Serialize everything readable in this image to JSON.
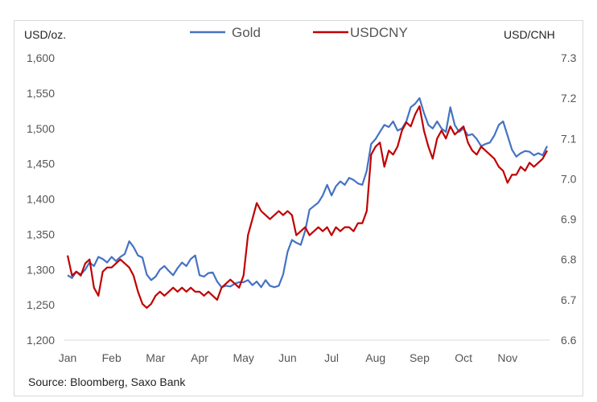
{
  "chart_data": {
    "type": "line",
    "y_left_unit": "USD/oz.",
    "y_right_unit": "USD/CNH",
    "source": "Source: Bloomberg, Saxo Bank",
    "y_left_range": [
      1200,
      1600
    ],
    "y_right_range": [
      6.6,
      7.3
    ],
    "y_left_ticks": [
      "1,200",
      "1,250",
      "1,300",
      "1,350",
      "1,400",
      "1,450",
      "1,500",
      "1,550",
      "1,600"
    ],
    "y_right_ticks": [
      "6.6",
      "6.7",
      "6.8",
      "6.9",
      "7.0",
      "7.1",
      "7.2",
      "7.3"
    ],
    "x_range": [
      0,
      10.9
    ],
    "x_ticks": [
      {
        "pos": 0,
        "label": "Jan"
      },
      {
        "pos": 1,
        "label": "Feb"
      },
      {
        "pos": 2,
        "label": "Mar"
      },
      {
        "pos": 3,
        "label": "Apr"
      },
      {
        "pos": 4,
        "label": "May"
      },
      {
        "pos": 5,
        "label": "Jun"
      },
      {
        "pos": 6,
        "label": "Jul"
      },
      {
        "pos": 7,
        "label": "Aug"
      },
      {
        "pos": 8,
        "label": "Sep"
      },
      {
        "pos": 9,
        "label": "Oct"
      },
      {
        "pos": 10,
        "label": "Nov"
      }
    ],
    "grid": false,
    "legend_position": "top-center",
    "series": [
      {
        "name": "Gold",
        "axis": "left",
        "color": "#4472c4",
        "points": [
          [
            0.0,
            1292
          ],
          [
            0.1,
            1288
          ],
          [
            0.2,
            1297
          ],
          [
            0.3,
            1293
          ],
          [
            0.4,
            1300
          ],
          [
            0.5,
            1310
          ],
          [
            0.6,
            1305
          ],
          [
            0.7,
            1318
          ],
          [
            0.8,
            1315
          ],
          [
            0.9,
            1310
          ],
          [
            1.0,
            1318
          ],
          [
            1.1,
            1312
          ],
          [
            1.2,
            1318
          ],
          [
            1.3,
            1322
          ],
          [
            1.4,
            1340
          ],
          [
            1.5,
            1332
          ],
          [
            1.6,
            1320
          ],
          [
            1.7,
            1317
          ],
          [
            1.8,
            1293
          ],
          [
            1.9,
            1285
          ],
          [
            2.0,
            1290
          ],
          [
            2.1,
            1300
          ],
          [
            2.2,
            1305
          ],
          [
            2.3,
            1298
          ],
          [
            2.4,
            1292
          ],
          [
            2.5,
            1302
          ],
          [
            2.6,
            1310
          ],
          [
            2.7,
            1305
          ],
          [
            2.8,
            1315
          ],
          [
            2.9,
            1320
          ],
          [
            3.0,
            1292
          ],
          [
            3.1,
            1290
          ],
          [
            3.2,
            1295
          ],
          [
            3.3,
            1296
          ],
          [
            3.4,
            1283
          ],
          [
            3.5,
            1275
          ],
          [
            3.6,
            1277
          ],
          [
            3.7,
            1276
          ],
          [
            3.8,
            1280
          ],
          [
            3.9,
            1282
          ],
          [
            4.0,
            1282
          ],
          [
            4.1,
            1285
          ],
          [
            4.2,
            1278
          ],
          [
            4.3,
            1283
          ],
          [
            4.4,
            1275
          ],
          [
            4.5,
            1285
          ],
          [
            4.6,
            1277
          ],
          [
            4.7,
            1275
          ],
          [
            4.8,
            1277
          ],
          [
            4.9,
            1293
          ],
          [
            5.0,
            1325
          ],
          [
            5.1,
            1342
          ],
          [
            5.2,
            1338
          ],
          [
            5.3,
            1335
          ],
          [
            5.4,
            1355
          ],
          [
            5.5,
            1385
          ],
          [
            5.6,
            1390
          ],
          [
            5.7,
            1395
          ],
          [
            5.8,
            1405
          ],
          [
            5.9,
            1420
          ],
          [
            6.0,
            1405
          ],
          [
            6.1,
            1418
          ],
          [
            6.2,
            1425
          ],
          [
            6.3,
            1420
          ],
          [
            6.4,
            1430
          ],
          [
            6.5,
            1427
          ],
          [
            6.6,
            1422
          ],
          [
            6.7,
            1420
          ],
          [
            6.8,
            1440
          ],
          [
            6.9,
            1478
          ],
          [
            7.0,
            1485
          ],
          [
            7.1,
            1495
          ],
          [
            7.2,
            1505
          ],
          [
            7.3,
            1502
          ],
          [
            7.4,
            1510
          ],
          [
            7.5,
            1497
          ],
          [
            7.6,
            1500
          ],
          [
            7.7,
            1510
          ],
          [
            7.8,
            1530
          ],
          [
            7.9,
            1535
          ],
          [
            8.0,
            1543
          ],
          [
            8.1,
            1522
          ],
          [
            8.2,
            1505
          ],
          [
            8.3,
            1500
          ],
          [
            8.4,
            1510
          ],
          [
            8.5,
            1500
          ],
          [
            8.6,
            1495
          ],
          [
            8.7,
            1530
          ],
          [
            8.8,
            1505
          ],
          [
            8.9,
            1495
          ],
          [
            9.0,
            1500
          ],
          [
            9.1,
            1490
          ],
          [
            9.2,
            1492
          ],
          [
            9.3,
            1485
          ],
          [
            9.4,
            1475
          ],
          [
            9.5,
            1478
          ],
          [
            9.6,
            1480
          ],
          [
            9.7,
            1490
          ],
          [
            9.8,
            1505
          ],
          [
            9.9,
            1510
          ],
          [
            10.0,
            1490
          ],
          [
            10.1,
            1470
          ],
          [
            10.2,
            1460
          ],
          [
            10.3,
            1465
          ],
          [
            10.4,
            1468
          ],
          [
            10.5,
            1467
          ],
          [
            10.6,
            1462
          ],
          [
            10.7,
            1465
          ],
          [
            10.8,
            1462
          ],
          [
            10.9,
            1475
          ]
        ]
      },
      {
        "name": "USDCNY",
        "axis": "right",
        "color": "#c00000",
        "points": [
          [
            0.0,
            6.81
          ],
          [
            0.1,
            6.76
          ],
          [
            0.2,
            6.77
          ],
          [
            0.3,
            6.76
          ],
          [
            0.4,
            6.79
          ],
          [
            0.5,
            6.8
          ],
          [
            0.6,
            6.73
          ],
          [
            0.7,
            6.71
          ],
          [
            0.8,
            6.77
          ],
          [
            0.9,
            6.78
          ],
          [
            1.0,
            6.78
          ],
          [
            1.1,
            6.79
          ],
          [
            1.2,
            6.8
          ],
          [
            1.3,
            6.79
          ],
          [
            1.4,
            6.78
          ],
          [
            1.5,
            6.76
          ],
          [
            1.6,
            6.72
          ],
          [
            1.7,
            6.69
          ],
          [
            1.8,
            6.68
          ],
          [
            1.9,
            6.69
          ],
          [
            2.0,
            6.71
          ],
          [
            2.1,
            6.72
          ],
          [
            2.2,
            6.71
          ],
          [
            2.3,
            6.72
          ],
          [
            2.4,
            6.73
          ],
          [
            2.5,
            6.72
          ],
          [
            2.6,
            6.73
          ],
          [
            2.7,
            6.72
          ],
          [
            2.8,
            6.73
          ],
          [
            2.9,
            6.72
          ],
          [
            3.0,
            6.72
          ],
          [
            3.1,
            6.71
          ],
          [
            3.2,
            6.72
          ],
          [
            3.3,
            6.71
          ],
          [
            3.4,
            6.7
          ],
          [
            3.5,
            6.73
          ],
          [
            3.6,
            6.74
          ],
          [
            3.7,
            6.75
          ],
          [
            3.8,
            6.74
          ],
          [
            3.9,
            6.73
          ],
          [
            4.0,
            6.76
          ],
          [
            4.1,
            6.86
          ],
          [
            4.2,
            6.9
          ],
          [
            4.3,
            6.94
          ],
          [
            4.4,
            6.92
          ],
          [
            4.5,
            6.91
          ],
          [
            4.6,
            6.9
          ],
          [
            4.7,
            6.91
          ],
          [
            4.8,
            6.92
          ],
          [
            4.9,
            6.91
          ],
          [
            5.0,
            6.92
          ],
          [
            5.1,
            6.91
          ],
          [
            5.2,
            6.86
          ],
          [
            5.3,
            6.87
          ],
          [
            5.4,
            6.88
          ],
          [
            5.5,
            6.86
          ],
          [
            5.6,
            6.87
          ],
          [
            5.7,
            6.88
          ],
          [
            5.8,
            6.87
          ],
          [
            5.9,
            6.88
          ],
          [
            6.0,
            6.86
          ],
          [
            6.1,
            6.88
          ],
          [
            6.2,
            6.87
          ],
          [
            6.3,
            6.88
          ],
          [
            6.4,
            6.88
          ],
          [
            6.5,
            6.87
          ],
          [
            6.6,
            6.89
          ],
          [
            6.7,
            6.89
          ],
          [
            6.8,
            6.92
          ],
          [
            6.9,
            7.06
          ],
          [
            7.0,
            7.08
          ],
          [
            7.1,
            7.09
          ],
          [
            7.2,
            7.03
          ],
          [
            7.3,
            7.07
          ],
          [
            7.4,
            7.06
          ],
          [
            7.5,
            7.08
          ],
          [
            7.6,
            7.12
          ],
          [
            7.7,
            7.14
          ],
          [
            7.8,
            7.13
          ],
          [
            7.9,
            7.16
          ],
          [
            8.0,
            7.18
          ],
          [
            8.1,
            7.12
          ],
          [
            8.2,
            7.08
          ],
          [
            8.3,
            7.05
          ],
          [
            8.4,
            7.1
          ],
          [
            8.5,
            7.12
          ],
          [
            8.6,
            7.1
          ],
          [
            8.7,
            7.13
          ],
          [
            8.8,
            7.11
          ],
          [
            8.9,
            7.12
          ],
          [
            9.0,
            7.13
          ],
          [
            9.1,
            7.09
          ],
          [
            9.2,
            7.07
          ],
          [
            9.3,
            7.06
          ],
          [
            9.4,
            7.08
          ],
          [
            9.5,
            7.07
          ],
          [
            9.6,
            7.06
          ],
          [
            9.7,
            7.05
          ],
          [
            9.8,
            7.03
          ],
          [
            9.9,
            7.02
          ],
          [
            10.0,
            6.99
          ],
          [
            10.1,
            7.01
          ],
          [
            10.2,
            7.01
          ],
          [
            10.3,
            7.03
          ],
          [
            10.4,
            7.02
          ],
          [
            10.5,
            7.04
          ],
          [
            10.6,
            7.03
          ],
          [
            10.7,
            7.04
          ],
          [
            10.8,
            7.05
          ],
          [
            10.9,
            7.07
          ]
        ]
      }
    ]
  }
}
